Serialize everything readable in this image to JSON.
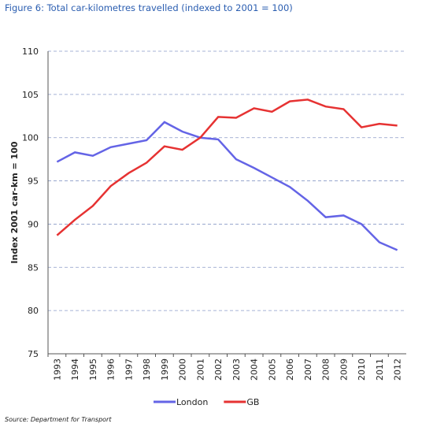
{
  "chart_data": {
    "type": "line",
    "title": "Figure 6: Total car-kilometres travelled (indexed to 2001 = 100)",
    "y_label": "Index 2001 car-km = 100",
    "source": "Source: Department for Transport",
    "categories": [
      "1993",
      "1994",
      "1995",
      "1996",
      "1997",
      "1998",
      "1999",
      "2000",
      "2001",
      "2002",
      "2003",
      "2004",
      "2005",
      "2006",
      "2007",
      "2008",
      "2009",
      "2010",
      "2011",
      "2012"
    ],
    "series": [
      {
        "name": "London",
        "color": "#6464e6",
        "values": [
          97.2,
          98.3,
          97.9,
          98.9,
          99.3,
          99.7,
          101.8,
          100.7,
          100,
          99.8,
          97.5,
          96.5,
          95.4,
          94.3,
          92.7,
          90.8,
          91.0,
          90.0,
          87.9,
          87.0
        ]
      },
      {
        "name": "GB",
        "color": "#e63232",
        "values": [
          88.7,
          90.5,
          92.1,
          94.4,
          95.9,
          97.1,
          99.0,
          98.6,
          100,
          102.4,
          102.3,
          103.4,
          103.0,
          104.2,
          104.4,
          103.6,
          103.3,
          101.2,
          101.6,
          101.4
        ]
      }
    ],
    "ylim": [
      75,
      110
    ],
    "yticks": [
      75,
      80,
      85,
      90,
      95,
      100,
      105,
      110
    ],
    "grid": true,
    "legend": "bottom"
  }
}
